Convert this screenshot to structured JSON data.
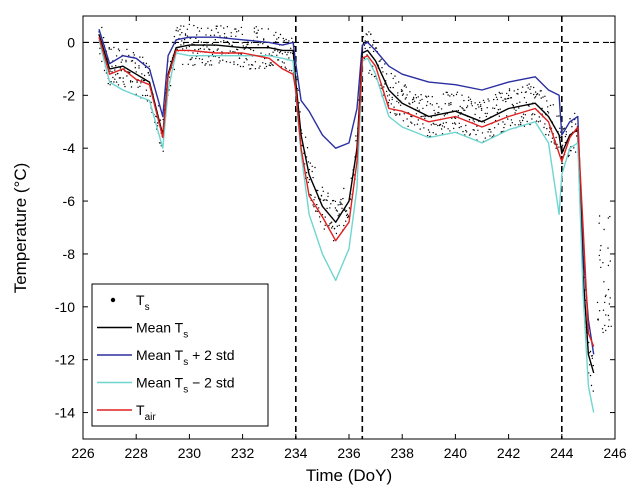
{
  "chart_data": {
    "type": "line",
    "xlabel": "Time (DoY)",
    "ylabel": "Temperature (°C)",
    "xlim": [
      226,
      246
    ],
    "ylim": [
      -15,
      1
    ],
    "xticks": [
      226,
      228,
      230,
      232,
      234,
      236,
      238,
      240,
      242,
      244,
      246
    ],
    "yticks": [
      0,
      -2,
      -4,
      -6,
      -8,
      -10,
      -12,
      -14
    ],
    "grid": false,
    "legend_position": "bottom-left",
    "reference_lines": {
      "horizontal": [
        0
      ],
      "vertical": [
        234,
        236.5,
        244
      ]
    },
    "series": [
      {
        "name": "Mean T + 2 std",
        "legend_main": "Mean T",
        "legend_sub": "s",
        "legend_tail": " + 2 std",
        "color": "#2b2fa0",
        "x": [
          226.6,
          227.0,
          227.5,
          228.0,
          228.5,
          229.0,
          229.2,
          229.5,
          230.0,
          231.0,
          232.0,
          233.0,
          233.5,
          233.9,
          234.0,
          234.2,
          234.5,
          235.0,
          235.5,
          236.0,
          236.3,
          236.5,
          236.7,
          237.0,
          237.5,
          238.0,
          239.0,
          240.0,
          241.0,
          242.0,
          243.0,
          243.5,
          243.9,
          244.0,
          244.3,
          244.6,
          244.8,
          245.0,
          245.2
        ],
        "y": [
          0.5,
          -0.8,
          -0.5,
          -0.6,
          -1.0,
          -2.8,
          -0.5,
          0.1,
          0.2,
          0.2,
          0.1,
          0.0,
          -0.1,
          0.0,
          -0.8,
          -2.2,
          -2.6,
          -3.5,
          -4.0,
          -3.8,
          -2.5,
          -0.1,
          0.0,
          -0.3,
          -0.9,
          -1.2,
          -1.5,
          -1.6,
          -1.8,
          -1.5,
          -1.3,
          -1.8,
          -2.0,
          -3.5,
          -3.0,
          -2.8,
          -8.0,
          -10.5,
          -11.8
        ]
      },
      {
        "name": "Mean T",
        "legend_main": "Mean T",
        "legend_sub": "s",
        "legend_tail": "",
        "color": "#000000",
        "x": [
          226.6,
          227.0,
          227.5,
          228.0,
          228.5,
          229.0,
          229.2,
          229.5,
          230.0,
          231.0,
          232.0,
          233.0,
          233.5,
          233.9,
          234.0,
          234.2,
          234.5,
          235.0,
          235.5,
          236.0,
          236.3,
          236.5,
          236.7,
          237.0,
          237.5,
          238.0,
          239.0,
          240.0,
          241.0,
          242.0,
          243.0,
          243.5,
          243.9,
          244.0,
          244.3,
          244.6,
          244.8,
          245.0,
          245.2
        ],
        "y": [
          0.3,
          -1.0,
          -0.9,
          -1.2,
          -1.5,
          -3.5,
          -1.2,
          -0.2,
          -0.1,
          -0.1,
          -0.2,
          -0.2,
          -0.3,
          -0.3,
          -1.5,
          -3.5,
          -5.0,
          -6.2,
          -6.8,
          -6.0,
          -4.0,
          -0.4,
          -0.3,
          -0.7,
          -1.8,
          -2.3,
          -2.8,
          -2.6,
          -3.0,
          -2.5,
          -2.3,
          -2.8,
          -3.5,
          -4.2,
          -3.5,
          -3.3,
          -8.8,
          -11.8,
          -12.5
        ]
      },
      {
        "name": "Mean T − 2 std",
        "legend_main": "Mean T",
        "legend_sub": "s",
        "legend_tail": " − 2 std",
        "color": "#6fd5d0",
        "x": [
          226.6,
          227.0,
          227.5,
          228.0,
          228.5,
          229.0,
          229.2,
          229.5,
          230.0,
          231.0,
          232.0,
          233.0,
          233.5,
          233.9,
          234.0,
          234.2,
          234.5,
          235.0,
          235.5,
          236.0,
          236.3,
          236.5,
          236.7,
          237.0,
          237.5,
          238.0,
          239.0,
          240.0,
          241.0,
          242.0,
          243.0,
          243.5,
          243.9,
          244.0,
          244.3,
          244.6,
          244.8,
          245.0,
          245.2
        ],
        "y": [
          0.1,
          -1.5,
          -1.8,
          -2.0,
          -2.2,
          -4.0,
          -1.8,
          -0.4,
          -0.5,
          -0.5,
          -0.5,
          -0.5,
          -0.6,
          -0.7,
          -2.0,
          -4.2,
          -6.5,
          -8.0,
          -9.0,
          -7.8,
          -5.5,
          -0.7,
          -0.6,
          -1.2,
          -2.8,
          -3.2,
          -3.6,
          -3.4,
          -3.8,
          -3.3,
          -3.0,
          -3.8,
          -6.5,
          -5.0,
          -4.0,
          -3.8,
          -9.5,
          -13.0,
          -14.0
        ]
      },
      {
        "name": "T air",
        "legend_main": "T",
        "legend_sub": "air",
        "legend_tail": "",
        "color": "#e02020",
        "x": [
          226.6,
          227.0,
          227.5,
          228.0,
          228.5,
          229.0,
          229.2,
          229.5,
          230.0,
          231.0,
          232.0,
          233.0,
          233.5,
          233.9,
          234.0,
          234.2,
          234.5,
          235.0,
          235.5,
          236.0,
          236.3,
          236.5,
          236.7,
          237.0,
          237.5,
          238.0,
          239.0,
          240.0,
          241.0,
          242.0,
          243.0,
          243.5,
          243.9,
          244.0,
          244.3,
          244.6,
          244.8,
          245.0,
          245.2
        ],
        "y": [
          0.2,
          -1.2,
          -1.0,
          -1.4,
          -1.6,
          -3.6,
          -1.3,
          -0.3,
          -0.3,
          -0.4,
          -0.4,
          -0.6,
          -1.0,
          -1.2,
          -1.8,
          -4.0,
          -5.8,
          -6.6,
          -7.5,
          -6.8,
          -4.5,
          -0.6,
          -0.5,
          -0.9,
          -2.5,
          -2.6,
          -3.0,
          -2.8,
          -3.2,
          -2.8,
          -2.5,
          -3.0,
          -4.2,
          -4.5,
          -3.6,
          -3.2,
          -7.0,
          -11.0,
          -11.5
        ]
      }
    ],
    "scatter_series": {
      "name": "T s",
      "legend_main": "T",
      "legend_sub": "s",
      "color": "#000000",
      "band_of": "Mean T",
      "spread": 0.8,
      "extra_x": [
        245.4,
        245.6,
        245.8
      ],
      "extra_y_range": [
        -11.0,
        -6.5
      ]
    }
  }
}
